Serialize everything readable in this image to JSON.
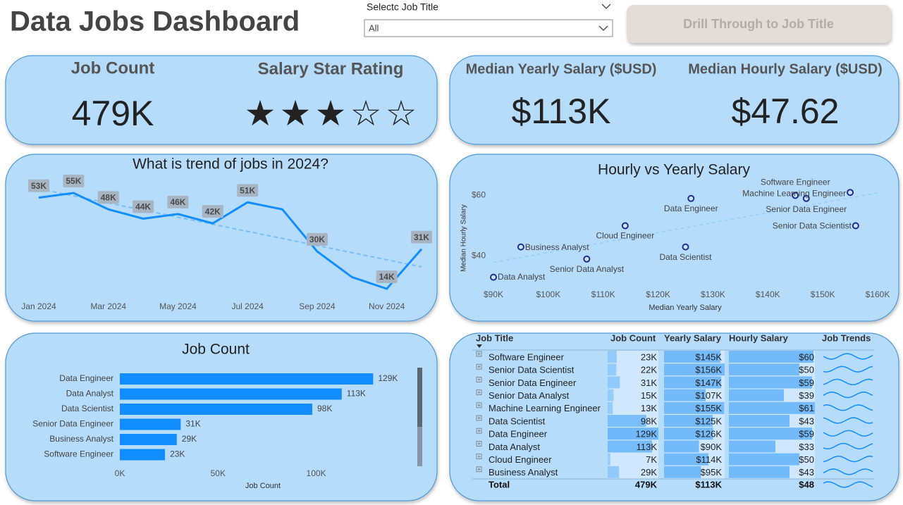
{
  "header": {
    "title": "Data Jobs Dashboard",
    "filter_label": "Selectc Job Title",
    "filter_value": "All",
    "button": "Drill Through to Job Title"
  },
  "kpis": {
    "job_count_label": "Job Count",
    "job_count": "479K",
    "rating_label": "Salary Star Rating",
    "rating": 3,
    "rating_max": 5,
    "yearly_label": "Median Yearly Salary ($USD)",
    "yearly": "$113K",
    "hourly_label": "Median Hourly Salary ($USD)",
    "hourly": "$47.62"
  },
  "chart_data": [
    {
      "type": "line",
      "title": "What is trend of jobs in 2024?",
      "categories": [
        "Jan 2024",
        null,
        "Mar 2024",
        null,
        "May 2024",
        null,
        "Jul 2024",
        null,
        "Sep 2024",
        null,
        "Nov 2024",
        null
      ],
      "values": [
        53000,
        55000,
        48000,
        44000,
        46000,
        42000,
        51000,
        48000,
        30000,
        19000,
        14000,
        31000
      ],
      "value_labels": [
        "53K",
        "55K",
        "48K",
        "44K",
        "46K",
        "42K",
        "51K",
        null,
        "30K",
        null,
        "14K",
        "31K"
      ],
      "color": "#118dff",
      "trendline": true
    },
    {
      "type": "scatter",
      "title": "Hourly vs Yearly Salary",
      "x_label": "Median Yearly Salary",
      "y_label": "Median Hourly Salary",
      "labels": [
        "Software Engineer",
        "Senior Data Scientist",
        "Senior Data Engineer",
        "Senior Data Analyst",
        "Machine Learning Engineer",
        "Data Scientist",
        "Data Engineer",
        "Data Analyst",
        "Cloud Engineer",
        "Business Analyst"
      ],
      "x": [
        145000,
        156000,
        147000,
        107000,
        155000,
        125000,
        126000,
        90000,
        114000,
        95000
      ],
      "values": [
        60,
        50,
        59,
        39,
        61,
        43,
        59,
        33,
        50,
        43
      ],
      "xlim": [
        90000,
        160000
      ],
      "xticks": [
        {
          "value": 90000,
          "label": "$90K"
        },
        {
          "value": 100000,
          "label": "$100K"
        },
        {
          "value": 110000,
          "label": "$110K"
        },
        {
          "value": 120000,
          "label": "$120K"
        },
        {
          "value": 130000,
          "label": "$130K"
        },
        {
          "value": 140000,
          "label": "$140K"
        },
        {
          "value": 150000,
          "label": "$150K"
        },
        {
          "value": 160000,
          "label": "$160K"
        }
      ],
      "ylim": [
        30,
        70
      ],
      "yticks": [
        {
          "value": 40,
          "label": "$40"
        },
        {
          "value": 60,
          "label": "$60"
        }
      ],
      "color": "#1f2d8f",
      "trendline": true
    },
    {
      "type": "bar",
      "orientation": "horizontal",
      "title": "Job Count",
      "x_label": "Job Count",
      "categories": [
        "Data Engineer",
        "Data Analyst",
        "Data Scientist",
        "Senior Data Engineer",
        "Business Analyst",
        "Software Engineer"
      ],
      "values": [
        129000,
        113000,
        98000,
        31000,
        29000,
        23000
      ],
      "value_labels": [
        "129K",
        "113K",
        "98K",
        "31K",
        "29K",
        "23K"
      ],
      "xlim": [
        0,
        140000
      ],
      "xticks": [
        {
          "value": 0,
          "label": "0K"
        },
        {
          "value": 50000,
          "label": "50K"
        },
        {
          "value": 100000,
          "label": "100K"
        }
      ],
      "color": "#118dff"
    }
  ],
  "table": {
    "columns": [
      "Job Title",
      "Job Count",
      "Yearly Salary",
      "Hourly Salary",
      "Job Trends"
    ],
    "rows": [
      [
        "Software Engineer",
        {
          "value": 23000,
          "label": "23K"
        },
        {
          "value": 145000,
          "label": "$145K"
        },
        {
          "value": 60,
          "label": "$60"
        }
      ],
      [
        "Senior Data Scientist",
        {
          "value": 22000,
          "label": "22K"
        },
        {
          "value": 156000,
          "label": "$156K"
        },
        {
          "value": 50,
          "label": "$50"
        }
      ],
      [
        "Senior Data Engineer",
        {
          "value": 31000,
          "label": "31K"
        },
        {
          "value": 147000,
          "label": "$147K"
        },
        {
          "value": 59,
          "label": "$59"
        }
      ],
      [
        "Senior Data Analyst",
        {
          "value": 15000,
          "label": "15K"
        },
        {
          "value": 107000,
          "label": "$107K"
        },
        {
          "value": 39,
          "label": "$39"
        }
      ],
      [
        "Machine Learning Engineer",
        {
          "value": 13000,
          "label": "13K"
        },
        {
          "value": 155000,
          "label": "$155K"
        },
        {
          "value": 61,
          "label": "$61"
        }
      ],
      [
        "Data Scientist",
        {
          "value": 98000,
          "label": "98K"
        },
        {
          "value": 125000,
          "label": "$125K"
        },
        {
          "value": 43,
          "label": "$43"
        }
      ],
      [
        "Data Engineer",
        {
          "value": 129000,
          "label": "129K"
        },
        {
          "value": 126000,
          "label": "$126K"
        },
        {
          "value": 59,
          "label": "$59"
        }
      ],
      [
        "Data Analyst",
        {
          "value": 113000,
          "label": "113K"
        },
        {
          "value": 90000,
          "label": "$90K"
        },
        {
          "value": 33,
          "label": "$33"
        }
      ],
      [
        "Cloud Engineer",
        {
          "value": 7000,
          "label": "7K"
        },
        {
          "value": 114000,
          "label": "$114K"
        },
        {
          "value": 50,
          "label": "$50"
        }
      ],
      [
        "Business Analyst",
        {
          "value": 29000,
          "label": "29K"
        },
        {
          "value": 95000,
          "label": "$95K"
        },
        {
          "value": 43,
          "label": "$43"
        }
      ]
    ],
    "total": [
      "Total",
      "479K",
      "$113K",
      "$48"
    ]
  }
}
